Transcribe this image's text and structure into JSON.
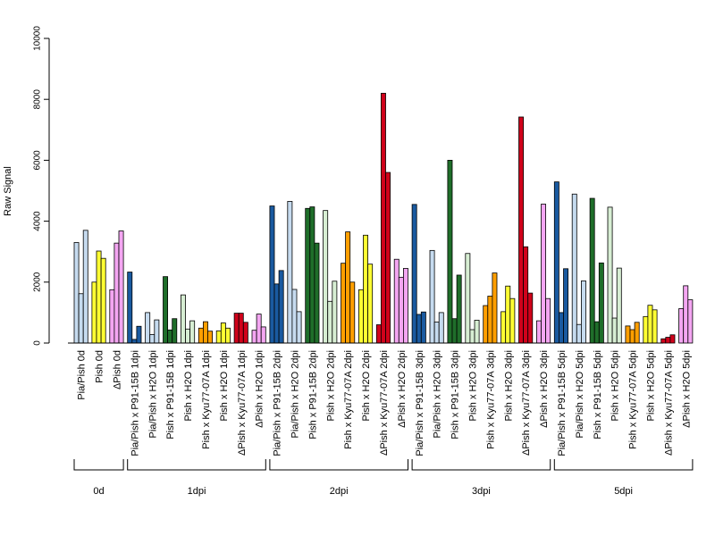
{
  "chart_data": {
    "type": "bar",
    "ylabel": "Raw Signal",
    "ylim": [
      0,
      10000
    ],
    "yticks": [
      0,
      2000,
      4000,
      6000,
      8000,
      10000
    ],
    "grid": false,
    "legend": "none",
    "categories": [
      "Pia/Pish 0d",
      "Pish 0d",
      "ΔPish 0d",
      "Pia/Pish x P91-15B 1dpi",
      "Pia/Pish x H2O 1dpi",
      "Pish x P91-15B 1dpi",
      "Pish x H2O 1dpi",
      "Pish x Kyu77-07A 1dpi",
      "Pish x H2O 1dpi",
      "ΔPish x Kyu77-07A 1dpi",
      "ΔPish x H2O 1dpi",
      "Pia/Pish x P91-15B 2dpi",
      "Pia/Pish x H2O 2dpi",
      "Pish x P91-15B 2dpi",
      "Pish x H2O 2dpi",
      "Pish x Kyu77-07A 2dpi",
      "Pish x H2O 2dpi",
      "ΔPish x Kyu77-07A 2dpi",
      "ΔPish x H2O 2dpi",
      "Pia/Pish x P91-15B 3dpi",
      "Pia/Pish x H2O 3dpi",
      "Pish x P91-15B 3dpi",
      "Pish x H2O 3dpi",
      "Pish x Kyu77-07A 3dpi",
      "Pish x H2O 3dpi",
      "ΔPish x Kyu77-07A 3dpi",
      "ΔPish x H2O 3dpi",
      "Pia/Pish x P91-15B 5dpi",
      "Pia/Pish x H2O 5dpi",
      "Pish x P91-15B 5dpi",
      "Pish x H2O 5dpi",
      "Pish x Kyu77-07A 5dpi",
      "Pish x H2O 5dpi",
      "ΔPish x Kyu77-07A 5dpi",
      "ΔPish x H2O 5dpi"
    ],
    "bar_colors": [
      "#c6dbef",
      "#ffff33",
      "#f4a6f2",
      "#1a5aa0",
      "#c6dbef",
      "#1f6e2a",
      "#d7eed3",
      "#ff9f00",
      "#ffff33",
      "#d0021b",
      "#f4a6f2",
      "#1a5aa0",
      "#c6dbef",
      "#1f6e2a",
      "#d7eed3",
      "#ff9f00",
      "#ffff33",
      "#d0021b",
      "#f4a6f2",
      "#1a5aa0",
      "#c6dbef",
      "#1f6e2a",
      "#d7eed3",
      "#ff9f00",
      "#ffff33",
      "#d0021b",
      "#f4a6f2",
      "#1a5aa0",
      "#c6dbef",
      "#1f6e2a",
      "#d7eed3",
      "#ff9f00",
      "#ffff33",
      "#d0021b",
      "#f4a6f2"
    ],
    "values": [
      [
        3300,
        1620,
        3700
      ],
      [
        2000,
        3020,
        2780
      ],
      [
        1750,
        3280,
        3680
      ],
      [
        2330,
        120,
        550
      ],
      [
        1000,
        280,
        760
      ],
      [
        2180,
        430,
        800
      ],
      [
        1580,
        460,
        730
      ],
      [
        490,
        700,
        390
      ],
      [
        400,
        660,
        490
      ],
      [
        980,
        980,
        680
      ],
      [
        420,
        950,
        530
      ],
      [
        4500,
        1940,
        2380
      ],
      [
        4650,
        1760,
        1030
      ],
      [
        4420,
        4470,
        3280
      ],
      [
        4350,
        1370,
        2030
      ],
      [
        2620,
        3650,
        2000
      ],
      [
        1750,
        3540,
        2590
      ],
      [
        600,
        8200,
        5600
      ],
      [
        2750,
        2160,
        2450
      ],
      [
        4550,
        940,
        1020
      ],
      [
        3040,
        690,
        1000
      ],
      [
        6000,
        800,
        2230
      ],
      [
        2940,
        440,
        750
      ],
      [
        1230,
        1540,
        2300
      ],
      [
        1030,
        1870,
        1460
      ],
      [
        7420,
        3160,
        1640
      ],
      [
        730,
        4560,
        1460
      ],
      [
        5290,
        1000,
        2440
      ],
      [
        4890,
        610,
        2040
      ],
      [
        4750,
        700,
        2630
      ],
      [
        4460,
        820,
        2460
      ],
      [
        560,
        440,
        680
      ],
      [
        870,
        1240,
        1090
      ],
      [
        140,
        190,
        270
      ],
      [
        1130,
        1880,
        1420
      ]
    ],
    "groups": [
      {
        "label": "0d",
        "start": 0,
        "end": 2
      },
      {
        "label": "1dpi",
        "start": 3,
        "end": 10
      },
      {
        "label": "2dpi",
        "start": 11,
        "end": 18
      },
      {
        "label": "3dpi",
        "start": 19,
        "end": 26
      },
      {
        "label": "5dpi",
        "start": 27,
        "end": 34
      }
    ]
  }
}
